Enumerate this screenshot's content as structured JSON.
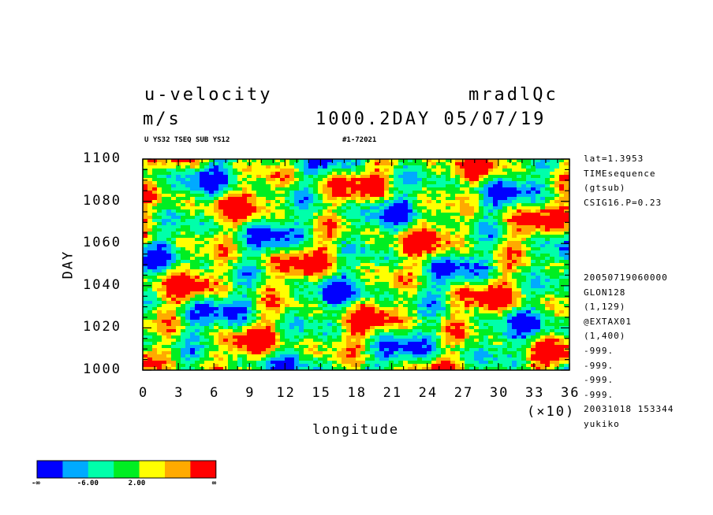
{
  "header": {
    "variable": "u-velocity",
    "units": "m/s",
    "run_name": "mradlQc",
    "time_label": "1000.2DAY 05/07/19",
    "source_info": "U YS32 TSEQ SUB YS12",
    "run_id": "#1-72021"
  },
  "side_info": {
    "top": [
      "lat=1.3953",
      "TIMEsequence",
      "(gtsub)",
      "CSIG16.P=0.23"
    ],
    "bottom": [
      "20050719060000",
      "GLON128",
      "(1,129)",
      "@EXTAX01",
      "(1,400)",
      "-999.",
      "-999.",
      "-999.",
      "-999.",
      "20031018 153344",
      "yukiko"
    ]
  },
  "chart_data": {
    "type": "heatmap",
    "xlabel": "longitude",
    "ylabel": "DAY",
    "x_scale_note": "(×10)",
    "xlim": [
      0,
      36
    ],
    "ylim": [
      1000,
      1100
    ],
    "x_ticks": [
      "0",
      "3",
      "6",
      "9",
      "12",
      "15",
      "18",
      "21",
      "24",
      "27",
      "30",
      "33",
      "36"
    ],
    "y_ticks": [
      "1000",
      "1020",
      "1040",
      "1060",
      "1080",
      "1100"
    ],
    "colorbar": {
      "colors": [
        "#0000ff",
        "#00aaff",
        "#00ffaa",
        "#00ee22",
        "#ffff00",
        "#ffaa00",
        "#ff0000"
      ],
      "labels": [
        "-∞",
        "-6.00",
        "2.00",
        "∞"
      ]
    }
  }
}
